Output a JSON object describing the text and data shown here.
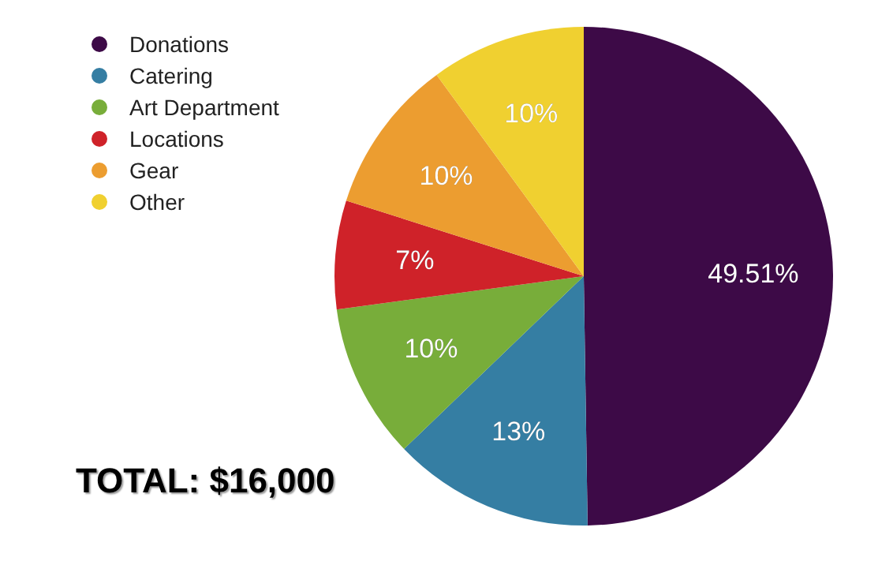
{
  "chart_data": {
    "type": "pie",
    "categories": [
      "Donations",
      "Catering",
      "Art Department",
      "Locations",
      "Gear",
      "Other"
    ],
    "values": [
      49.51,
      13,
      10,
      7,
      10,
      10
    ],
    "colors": [
      "#3d0a47",
      "#357ea3",
      "#78ad3a",
      "#cf2229",
      "#ec9d30",
      "#f0d030"
    ],
    "value_labels": [
      "49.51%",
      "13%",
      "10%",
      "7%",
      "10%",
      "10%"
    ],
    "legend": "top left",
    "annotations": [
      "TOTAL: $16,000"
    ]
  }
}
